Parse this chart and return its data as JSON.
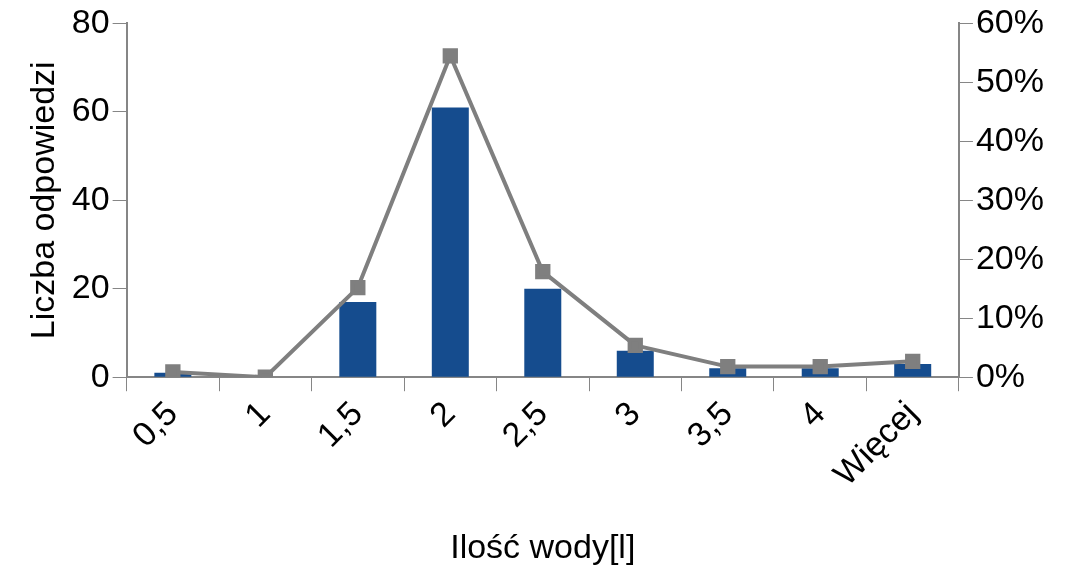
{
  "chart_data": {
    "type": "bar",
    "xlabel": "Ilość wody[l]",
    "ylabel": "Liczba odpowiedzi",
    "categories": [
      "0,5",
      "1",
      "1,5",
      "2",
      "2,5",
      "3",
      "3,5",
      "4",
      "Więcej"
    ],
    "series": [
      {
        "color": "#154c8e",
        "values": [
          1,
          0,
          17,
          61,
          20,
          6,
          2,
          2,
          3
        ]
      },
      {
        "type": "line",
        "axis": "y2",
        "color": "#7f7f7f",
        "marker": "square",
        "values": [
          0.9,
          0,
          15.2,
          54.5,
          17.9,
          5.4,
          1.8,
          1.8,
          2.7
        ]
      }
    ],
    "ylim": [
      0,
      80
    ],
    "yticks": [
      0,
      20,
      40,
      60,
      80
    ],
    "y2lim": [
      0,
      60
    ],
    "y2ticks": [
      {
        "value": 0,
        "label": "0%"
      },
      {
        "value": 10,
        "label": "10%"
      },
      {
        "value": 20,
        "label": "20%"
      },
      {
        "value": 30,
        "label": "30%"
      },
      {
        "value": 40,
        "label": "40%"
      },
      {
        "value": 50,
        "label": "50%"
      },
      {
        "value": 60,
        "label": "60%"
      }
    ],
    "grid": false,
    "legend": false
  }
}
